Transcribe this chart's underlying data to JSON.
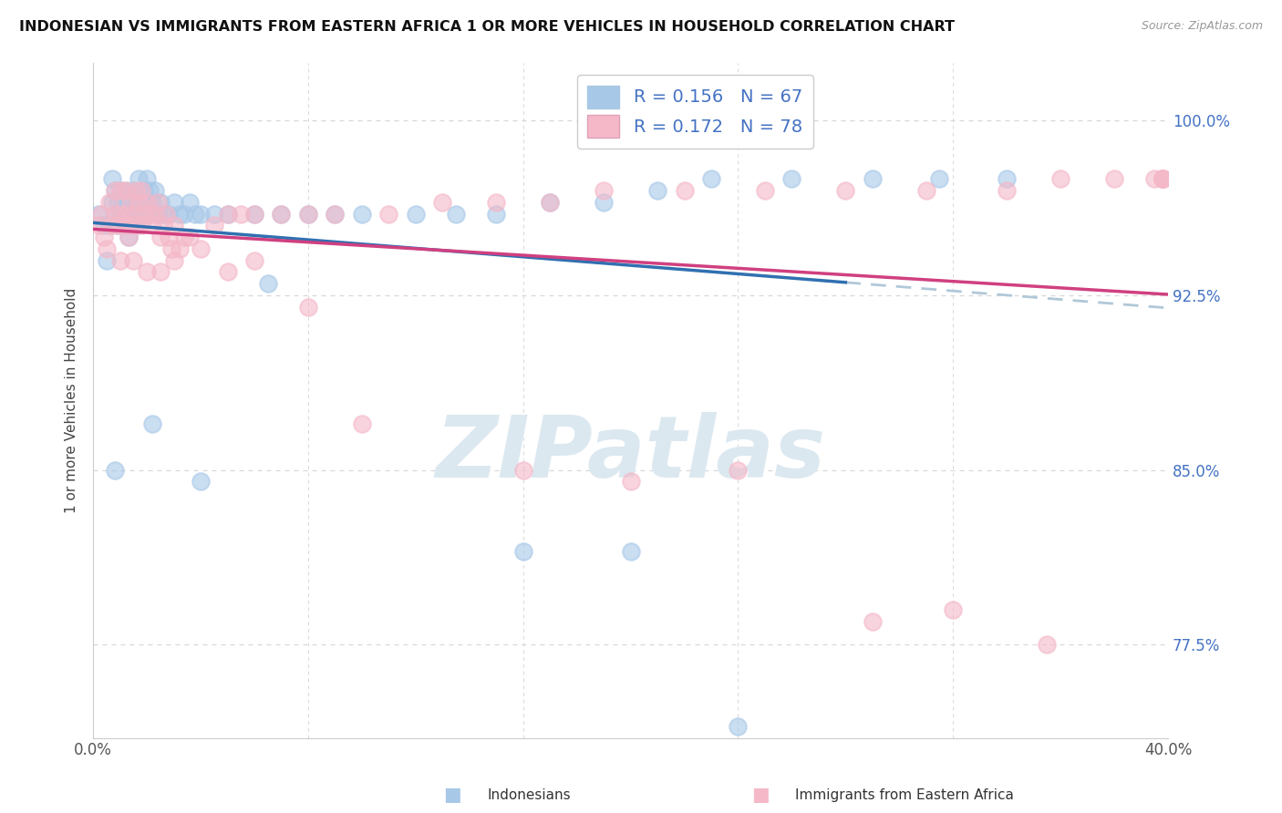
{
  "title": "INDONESIAN VS IMMIGRANTS FROM EASTERN AFRICA 1 OR MORE VEHICLES IN HOUSEHOLD CORRELATION CHART",
  "source": "Source: ZipAtlas.com",
  "ylabel": "1 or more Vehicles in Household",
  "xlim": [
    0.0,
    0.4
  ],
  "ylim": [
    0.735,
    1.025
  ],
  "yticks": [
    0.775,
    0.85,
    0.925,
    1.0
  ],
  "yticklabels_right": [
    "77.5%",
    "85.0%",
    "92.5%",
    "100.0%"
  ],
  "xtick_positions": [
    0.0,
    0.08,
    0.16,
    0.24,
    0.32,
    0.4
  ],
  "xticklabels": [
    "0.0%",
    "",
    "",
    "",
    "",
    "40.0%"
  ],
  "legend_line1": "R = 0.156   N = 67",
  "legend_line2": "R = 0.172   N = 78",
  "legend_label1": "Indonesians",
  "legend_label2": "Immigrants from Eastern Africa",
  "color_blue": "#a8c8e8",
  "color_pink": "#f4b8c8",
  "trend_color_blue": "#3070b0",
  "trend_color_pink": "#d04080",
  "trend_color_dashed": "#b0c8d8",
  "blue_x": [
    0.002,
    0.004,
    0.005,
    0.006,
    0.007,
    0.007,
    0.008,
    0.008,
    0.009,
    0.009,
    0.01,
    0.01,
    0.011,
    0.011,
    0.012,
    0.012,
    0.013,
    0.013,
    0.014,
    0.015,
    0.015,
    0.016,
    0.016,
    0.017,
    0.017,
    0.018,
    0.019,
    0.02,
    0.02,
    0.021,
    0.022,
    0.023,
    0.024,
    0.025,
    0.026,
    0.028,
    0.03,
    0.032,
    0.034,
    0.036,
    0.038,
    0.04,
    0.045,
    0.05,
    0.06,
    0.07,
    0.08,
    0.09,
    0.1,
    0.12,
    0.135,
    0.15,
    0.17,
    0.19,
    0.21,
    0.23,
    0.26,
    0.29,
    0.315,
    0.34,
    0.008,
    0.022,
    0.04,
    0.065,
    0.16,
    0.2,
    0.24
  ],
  "blue_y": [
    0.96,
    0.955,
    0.94,
    0.955,
    0.965,
    0.975,
    0.96,
    0.97,
    0.955,
    0.965,
    0.96,
    0.97,
    0.955,
    0.965,
    0.96,
    0.97,
    0.95,
    0.965,
    0.955,
    0.96,
    0.97,
    0.955,
    0.965,
    0.96,
    0.975,
    0.965,
    0.97,
    0.96,
    0.975,
    0.97,
    0.965,
    0.97,
    0.96,
    0.965,
    0.96,
    0.96,
    0.965,
    0.96,
    0.96,
    0.965,
    0.96,
    0.96,
    0.96,
    0.96,
    0.96,
    0.96,
    0.96,
    0.96,
    0.96,
    0.96,
    0.96,
    0.96,
    0.965,
    0.965,
    0.97,
    0.975,
    0.975,
    0.975,
    0.975,
    0.975,
    0.85,
    0.87,
    0.845,
    0.93,
    0.815,
    0.815,
    0.74
  ],
  "pink_x": [
    0.002,
    0.003,
    0.004,
    0.005,
    0.006,
    0.007,
    0.008,
    0.008,
    0.009,
    0.01,
    0.01,
    0.011,
    0.012,
    0.012,
    0.013,
    0.014,
    0.014,
    0.015,
    0.016,
    0.016,
    0.017,
    0.018,
    0.018,
    0.019,
    0.02,
    0.021,
    0.022,
    0.023,
    0.024,
    0.025,
    0.026,
    0.027,
    0.028,
    0.029,
    0.03,
    0.032,
    0.034,
    0.036,
    0.04,
    0.045,
    0.05,
    0.055,
    0.06,
    0.07,
    0.08,
    0.09,
    0.11,
    0.13,
    0.15,
    0.17,
    0.19,
    0.22,
    0.25,
    0.28,
    0.31,
    0.34,
    0.36,
    0.38,
    0.395,
    0.398,
    0.398,
    0.398,
    0.398,
    0.01,
    0.015,
    0.02,
    0.025,
    0.03,
    0.05,
    0.06,
    0.08,
    0.1,
    0.16,
    0.2,
    0.24,
    0.29,
    0.32,
    0.355
  ],
  "pink_y": [
    0.955,
    0.96,
    0.95,
    0.945,
    0.965,
    0.955,
    0.96,
    0.97,
    0.955,
    0.96,
    0.97,
    0.955,
    0.96,
    0.97,
    0.95,
    0.955,
    0.965,
    0.96,
    0.955,
    0.97,
    0.965,
    0.955,
    0.97,
    0.96,
    0.965,
    0.96,
    0.955,
    0.96,
    0.965,
    0.95,
    0.955,
    0.96,
    0.95,
    0.945,
    0.955,
    0.945,
    0.95,
    0.95,
    0.945,
    0.955,
    0.96,
    0.96,
    0.96,
    0.96,
    0.96,
    0.96,
    0.96,
    0.965,
    0.965,
    0.965,
    0.97,
    0.97,
    0.97,
    0.97,
    0.97,
    0.97,
    0.975,
    0.975,
    0.975,
    0.975,
    0.975,
    0.975,
    0.975,
    0.94,
    0.94,
    0.935,
    0.935,
    0.94,
    0.935,
    0.94,
    0.92,
    0.87,
    0.85,
    0.845,
    0.85,
    0.785,
    0.79,
    0.775
  ],
  "background_color": "#ffffff",
  "grid_color": "#d8d8d8",
  "watermark_text": "ZIPatlas",
  "watermark_color": "#dce8f0"
}
